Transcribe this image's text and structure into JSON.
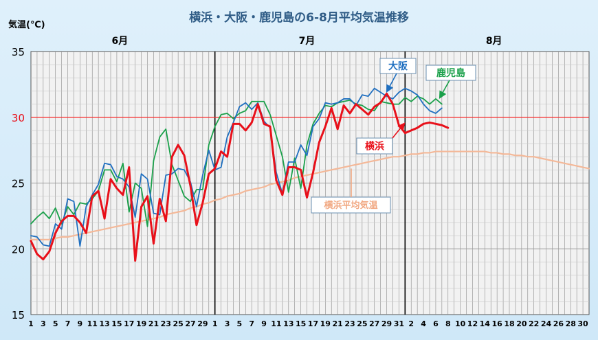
{
  "chart_data": {
    "type": "line",
    "title": "横浜・大阪・鹿児島の6-8月平均気温推移",
    "ylabel": "気温(℃)",
    "ylim": [
      15,
      35
    ],
    "yticks": [
      "15",
      "20",
      "25",
      "30",
      "35"
    ],
    "month_labels": [
      "6月",
      "7月",
      "8月"
    ],
    "x_tick_labels": [
      "1",
      "3",
      "5",
      "7",
      "9",
      "11",
      "13",
      "15",
      "17",
      "19",
      "21",
      "23",
      "25",
      "27",
      "29",
      "1",
      "3",
      "5",
      "7",
      "9",
      "11",
      "13",
      "15",
      "17",
      "19",
      "21",
      "23",
      "25",
      "27",
      "29",
      "31",
      "2",
      "4",
      "6",
      "8",
      "10",
      "12",
      "14",
      "16",
      "18",
      "20",
      "22",
      "24",
      "26",
      "28",
      "30"
    ],
    "reference_line": {
      "value": 30,
      "color": "#ff2a2a"
    },
    "grid": true,
    "series": [
      {
        "name": "大阪",
        "color": "#1f6fc0",
        "values": [
          21.0,
          20.9,
          20.3,
          20.2,
          21.9,
          21.5,
          23.8,
          23.6,
          20.2,
          23.2,
          24.1,
          24.9,
          26.5,
          26.4,
          25.5,
          25.3,
          24.7,
          22.4,
          25.7,
          25.3,
          22.7,
          22.6,
          25.6,
          25.7,
          26.1,
          26.0,
          25.1,
          23.2,
          25.6,
          27.5,
          26.0,
          26.2,
          28.5,
          29.6,
          30.8,
          31.1,
          30.6,
          31.1,
          29.7,
          29.2,
          25.8,
          24.2,
          26.6,
          26.6,
          27.9,
          27.1,
          29.3,
          29.9,
          31.1,
          31.0,
          31.1,
          31.4,
          31.4,
          30.9,
          31.7,
          31.6,
          32.2,
          31.9,
          31.6,
          31.4,
          31.9,
          32.2,
          32.0,
          31.7,
          31.0,
          30.5,
          30.3,
          30.7
        ]
      },
      {
        "name": "鹿児島",
        "color": "#1aa04a",
        "values": [
          21.9,
          22.4,
          22.8,
          22.3,
          23.1,
          21.9,
          23.2,
          22.6,
          23.5,
          23.4,
          23.8,
          24.4,
          26.0,
          26.0,
          25.1,
          26.5,
          22.8,
          25.0,
          24.6,
          21.7,
          26.7,
          28.5,
          29.1,
          26.4,
          25.2,
          24.0,
          23.6,
          24.5,
          24.5,
          27.9,
          29.3,
          30.2,
          30.3,
          29.9,
          30.3,
          30.5,
          31.2,
          31.2,
          31.2,
          30.2,
          28.6,
          27.0,
          24.3,
          26.9,
          24.6,
          27.9,
          29.5,
          30.3,
          30.9,
          30.8,
          31.1,
          31.2,
          31.3,
          31.0,
          30.9,
          30.6,
          30.5,
          31.2,
          31.1,
          31.0,
          31.0,
          31.5,
          31.2,
          31.6,
          31.4,
          31.0,
          31.4,
          31.0
        ]
      },
      {
        "name": "横浜",
        "color": "#e8101a",
        "values": [
          20.6,
          19.6,
          19.2,
          19.8,
          21.2,
          22.1,
          22.5,
          22.5,
          22.0,
          21.2,
          24.0,
          24.4,
          22.3,
          25.3,
          24.6,
          24.1,
          26.2,
          19.1,
          23.2,
          24.0,
          20.4,
          23.8,
          22.1,
          27.0,
          27.9,
          27.1,
          24.8,
          21.8,
          23.5,
          25.7,
          26.1,
          27.4,
          27.0,
          29.5,
          29.5,
          29.0,
          29.6,
          31.0,
          29.5,
          29.3,
          25.2,
          24.1,
          26.2,
          26.2,
          26.0,
          23.9,
          25.8,
          28.1,
          29.3,
          30.7,
          29.1,
          30.9,
          30.3,
          31.0,
          30.6,
          30.2,
          30.8,
          31.1,
          31.8,
          31.0,
          29.4,
          28.8,
          29.0,
          29.2,
          29.5,
          29.6,
          29.5,
          29.4,
          29.2
        ]
      },
      {
        "name": "横浜平均気温",
        "color": "#f4b898",
        "values": [
          20.7,
          20.7,
          20.7,
          20.7,
          20.8,
          20.9,
          20.9,
          21.0,
          21.1,
          21.2,
          21.3,
          21.4,
          21.5,
          21.6,
          21.7,
          21.8,
          21.9,
          22.0,
          22.1,
          22.2,
          22.3,
          22.4,
          22.6,
          22.7,
          22.8,
          22.9,
          23.1,
          23.2,
          23.4,
          23.5,
          23.7,
          23.8,
          24.0,
          24.1,
          24.2,
          24.4,
          24.5,
          24.6,
          24.7,
          24.9,
          25.0,
          25.1,
          25.2,
          25.4,
          25.5,
          25.6,
          25.7,
          25.8,
          25.9,
          26.0,
          26.1,
          26.2,
          26.3,
          26.4,
          26.5,
          26.6,
          26.7,
          26.8,
          26.9,
          27.0,
          27.0,
          27.1,
          27.2,
          27.2,
          27.3,
          27.3,
          27.4,
          27.4,
          27.4,
          27.4,
          27.4,
          27.4,
          27.4,
          27.4,
          27.4,
          27.3,
          27.3,
          27.2,
          27.2,
          27.1,
          27.1,
          27.0,
          27.0,
          26.9,
          26.8,
          26.7,
          26.6,
          26.5,
          26.4,
          26.3,
          26.2,
          26.1
        ]
      }
    ],
    "labels": {
      "osaka": "大阪",
      "kagoshima": "鹿児島",
      "yokohama": "横浜",
      "avg": "横浜平均気温"
    }
  }
}
